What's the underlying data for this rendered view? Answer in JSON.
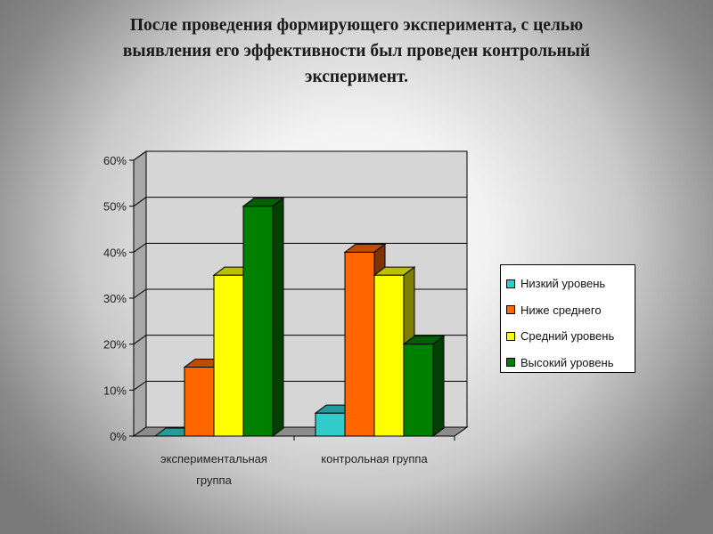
{
  "title": {
    "line1": "После проведения формирующего эксперимента, с целью",
    "line2": "выявления его эффективности был проведен контрольный",
    "line3": "эксперимент."
  },
  "colors": {
    "low": "#33cccc",
    "below_avg": "#ff6600",
    "avg": "#ffff00",
    "high": "#008000"
  },
  "chart_data": {
    "type": "bar",
    "categories": [
      "экспериментальная группа",
      "контрольная группа"
    ],
    "series": [
      {
        "name": "Низкий уровень",
        "values": [
          0,
          5
        ],
        "color": "#33cccc"
      },
      {
        "name": "Ниже среднего",
        "values": [
          15,
          40
        ],
        "color": "#ff6600"
      },
      {
        "name": "Средний уровень",
        "values": [
          35,
          35
        ],
        "color": "#ffff00"
      },
      {
        "name": "Высокий уровень",
        "values": [
          50,
          20
        ],
        "color": "#008000"
      }
    ],
    "yticks": [
      "0%",
      "10%",
      "20%",
      "30%",
      "40%",
      "50%",
      "60%"
    ],
    "ylim": [
      0,
      60
    ],
    "grid": true,
    "three_d": true,
    "legend": "right"
  }
}
